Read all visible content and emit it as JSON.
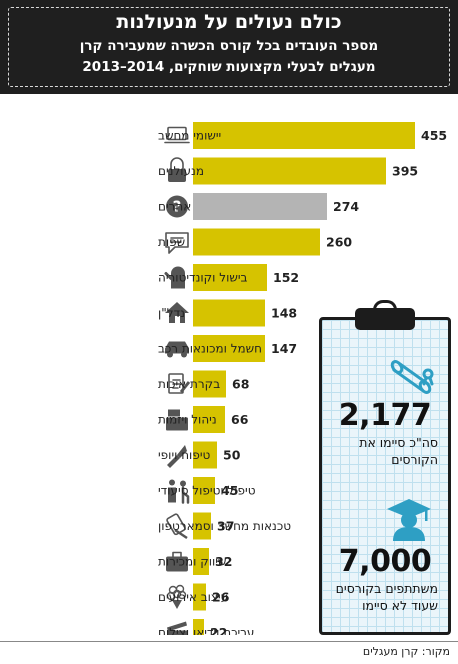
{
  "header": {
    "title": "כולם נעולים על מנעולנות",
    "subtitle_line1": "מספר העובדים בכל קורס הכשרה שמעבירה קרן",
    "subtitle_line2": "מעגלים לבעלי מקצועות שוחקים, 2014–2013"
  },
  "colors": {
    "bar_main": "#d6c300",
    "bar_other": "#b4b4b4",
    "header_bg": "#1f1f1f",
    "clipboard_bg": "#eaf5fa",
    "icon_teal": "#2e9fc4"
  },
  "chart_data": {
    "type": "bar",
    "orientation": "horizontal",
    "title": "כולם נעולים על מנעולנות",
    "categories": [
      "יישומי מחשב",
      "מנעולנים",
      "אחרים",
      "שפות",
      "בישול וקונדיטוריה",
      "נדל\"ן",
      "חשמל ומכונאות רכב",
      "בקרת איכות",
      "ניהול ויזמות",
      "טיפוח ויופי",
      "טיפול וטיפול סיעודי",
      "טכנאות מחשב וסמארטפון",
      "שיווק ומכירות",
      "עיצוב אירועים",
      "עריכת וידיאו וצילום"
    ],
    "values": [
      455,
      395,
      274,
      260,
      152,
      148,
      147,
      68,
      66,
      50,
      45,
      37,
      32,
      26,
      22
    ],
    "highlight_other_index": 2,
    "icons": [
      "laptop-icon",
      "padlock-icon",
      "question-icon",
      "speech-bubble-icon",
      "oven-mitt-icon",
      "house-icon",
      "car-icon",
      "checklist-icon",
      "cash-register-icon",
      "lipstick-icon",
      "caregiver-icon",
      "screwdriver-device-icon",
      "briefcase-icon",
      "flower-bouquet-icon",
      "clapperboard-icon"
    ],
    "xlim": [
      0,
      470
    ]
  },
  "stats": {
    "completed_number": "2,177",
    "completed_label": "סה\"כ סיימו את הקורסים",
    "participants_number": "7,000",
    "participants_label": "משתתפים בקורסים שעוד לא סיימו"
  },
  "source": "מקור: קרן מעגלים"
}
